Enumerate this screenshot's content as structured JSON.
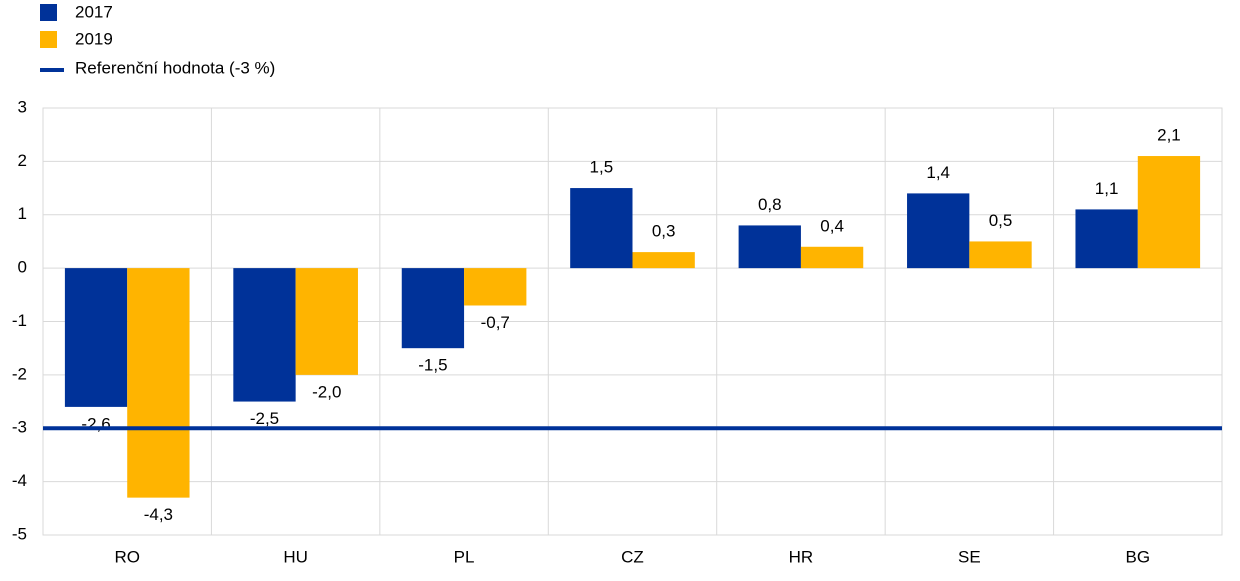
{
  "chart_data": {
    "type": "bar",
    "categories": [
      "RO",
      "HU",
      "PL",
      "CZ",
      "HR",
      "SE",
      "BG"
    ],
    "series": [
      {
        "name": "2017",
        "color": "#003299",
        "values": [
          -2.6,
          -2.5,
          -1.5,
          1.5,
          0.8,
          1.4,
          1.1
        ],
        "value_labels": [
          "-2,6",
          "-2,5",
          "-1,5",
          "1,5",
          "0,8",
          "1,4",
          "1,1"
        ]
      },
      {
        "name": "2019",
        "color": "#ffb400",
        "values": [
          -4.3,
          -2.0,
          -0.7,
          0.3,
          0.4,
          0.5,
          2.1
        ],
        "value_labels": [
          "-4,3",
          "-2,0",
          "-0,7",
          "0,3",
          "0,4",
          "0,5",
          "2,1"
        ]
      }
    ],
    "reference": {
      "name": "Referenční hodnota (-3 %)",
      "value": -3,
      "color": "#003299"
    },
    "ylim": [
      -5,
      3
    ],
    "yticks": [
      -5,
      -4,
      -3,
      -2,
      -1,
      0,
      1,
      2,
      3
    ],
    "grid": true,
    "legend": "top-left"
  }
}
